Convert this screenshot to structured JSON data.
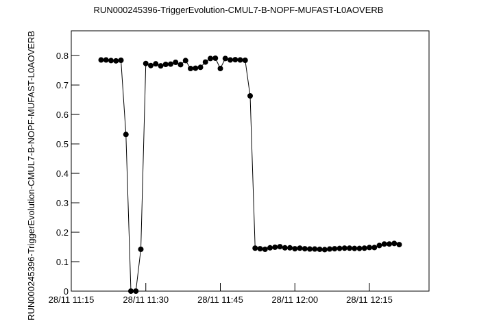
{
  "chart_data": {
    "type": "line",
    "title": "RUN000245396-TriggerEvolution-CMUL7-B-NOPF-MUFAST-L0AOVERB",
    "y_label": "RUN000245396-TriggerEvolution-CMUL7-B-NOPF-MUFAST-L0AOVERB",
    "color": "#000000",
    "x": [
      "28/11 11:21",
      "28/11 11:22",
      "28/11 11:23",
      "28/11 11:24",
      "28/11 11:25",
      "28/11 11:26",
      "28/11 11:27",
      "28/11 11:28",
      "28/11 11:29",
      "28/11 11:30",
      "28/11 11:31",
      "28/11 11:32",
      "28/11 11:33",
      "28/11 11:34",
      "28/11 11:35",
      "28/11 11:36",
      "28/11 11:37",
      "28/11 11:38",
      "28/11 11:39",
      "28/11 11:40",
      "28/11 11:41",
      "28/11 11:42",
      "28/11 11:43",
      "28/11 11:44",
      "28/11 11:45",
      "28/11 11:46",
      "28/11 11:47",
      "28/11 11:48",
      "28/11 11:49",
      "28/11 11:50",
      "28/11 11:51",
      "28/11 11:52",
      "28/11 11:53",
      "28/11 11:54",
      "28/11 11:55",
      "28/11 11:56",
      "28/11 11:57",
      "28/11 11:58",
      "28/11 11:59",
      "28/11 12:00",
      "28/11 12:01",
      "28/11 12:02",
      "28/11 12:03",
      "28/11 12:04",
      "28/11 12:05",
      "28/11 12:06",
      "28/11 12:07",
      "28/11 12:08",
      "28/11 12:09",
      "28/11 12:10",
      "28/11 12:11",
      "28/11 12:12",
      "28/11 12:13",
      "28/11 12:14",
      "28/11 12:15",
      "28/11 12:16",
      "28/11 12:17",
      "28/11 12:18",
      "28/11 12:19",
      "28/11 12:20",
      "28/11 12:21"
    ],
    "values": [
      0.785,
      0.785,
      0.783,
      0.782,
      0.784,
      0.532,
      0.0,
      0.0,
      0.142,
      0.773,
      0.766,
      0.772,
      0.765,
      0.77,
      0.771,
      0.777,
      0.769,
      0.783,
      0.756,
      0.757,
      0.76,
      0.778,
      0.79,
      0.791,
      0.756,
      0.79,
      0.785,
      0.786,
      0.785,
      0.784,
      0.663,
      0.146,
      0.144,
      0.142,
      0.147,
      0.149,
      0.151,
      0.147,
      0.147,
      0.144,
      0.146,
      0.144,
      0.143,
      0.143,
      0.142,
      0.141,
      0.143,
      0.144,
      0.145,
      0.146,
      0.146,
      0.145,
      0.145,
      0.146,
      0.148,
      0.148,
      0.155,
      0.16,
      0.16,
      0.162,
      0.158
    ],
    "xlim": [
      "28/11 11:15",
      "28/11 12:27"
    ],
    "xticks": [
      "28/11 11:15",
      "28/11 11:30",
      "28/11 11:45",
      "28/11 12:00",
      "28/11 12:15"
    ],
    "ylim": [
      0,
      0.884
    ],
    "yticks": [
      0,
      0.1,
      0.2,
      0.3,
      0.4,
      0.5,
      0.6,
      0.7,
      0.8
    ]
  }
}
